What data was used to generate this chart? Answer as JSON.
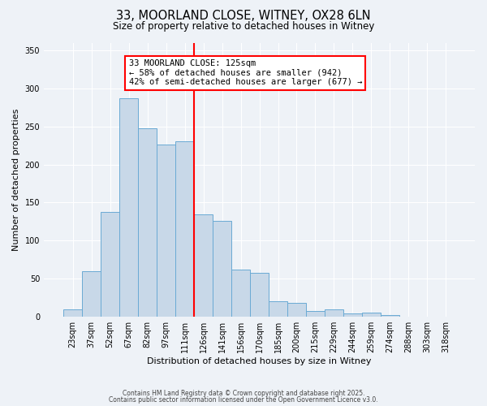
{
  "title": "33, MOORLAND CLOSE, WITNEY, OX28 6LN",
  "subtitle": "Size of property relative to detached houses in Witney",
  "xlabel": "Distribution of detached houses by size in Witney",
  "ylabel": "Number of detached properties",
  "bar_labels": [
    "23sqm",
    "37sqm",
    "52sqm",
    "67sqm",
    "82sqm",
    "97sqm",
    "111sqm",
    "126sqm",
    "141sqm",
    "156sqm",
    "170sqm",
    "185sqm",
    "200sqm",
    "215sqm",
    "229sqm",
    "244sqm",
    "259sqm",
    "274sqm",
    "288sqm",
    "303sqm",
    "318sqm"
  ],
  "bar_values": [
    10,
    60,
    138,
    287,
    248,
    226,
    231,
    135,
    126,
    62,
    58,
    20,
    18,
    8,
    10,
    4,
    6,
    2,
    0,
    0,
    0
  ],
  "bar_color": "#c8d8e8",
  "bar_edge_color": "#6aaad4",
  "vline_color": "red",
  "vline_index": 7,
  "annotation_title": "33 MOORLAND CLOSE: 125sqm",
  "annotation_line1": "← 58% of detached houses are smaller (942)",
  "annotation_line2": "42% of semi-detached houses are larger (677) →",
  "annotation_box_color": "white",
  "annotation_box_edge": "red",
  "ylim": [
    0,
    360
  ],
  "yticks": [
    0,
    50,
    100,
    150,
    200,
    250,
    300,
    350
  ],
  "footer1": "Contains HM Land Registry data © Crown copyright and database right 2025.",
  "footer2": "Contains public sector information licensed under the Open Government Licence v3.0.",
  "background_color": "#eef2f7",
  "grid_color": "#ffffff",
  "title_fontsize": 10.5,
  "subtitle_fontsize": 8.5,
  "axis_label_fontsize": 8,
  "tick_fontsize": 7,
  "annotation_fontsize": 7.5,
  "footer_fontsize": 5.5
}
